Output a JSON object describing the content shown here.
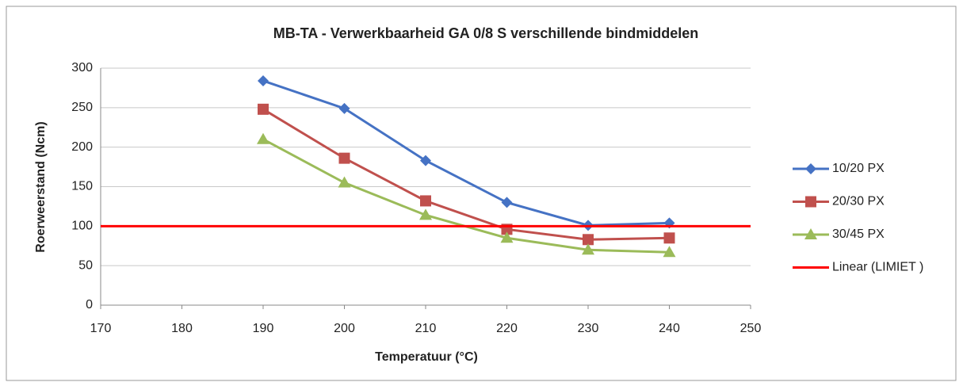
{
  "chart_data": {
    "type": "line",
    "title": "MB-TA - Verwerkbaarheid GA 0/8 S  verschillende bindmiddelen",
    "xlabel": "Temperatuur (°C)",
    "ylabel": "Roerweerstand (Ncm)",
    "xlim": [
      170,
      250
    ],
    "xticks": [
      170,
      180,
      190,
      200,
      210,
      220,
      230,
      240,
      250
    ],
    "ylim": [
      0,
      300
    ],
    "yticks": [
      0,
      50,
      100,
      150,
      200,
      250,
      300
    ],
    "grid": true,
    "legend": "right",
    "series": [
      {
        "name": "10/20 PX",
        "color": "#4572c4",
        "marker": "diamond",
        "x": [
          190,
          200,
          210,
          220,
          230,
          240
        ],
        "values": [
          284,
          249,
          183,
          130,
          101,
          104
        ]
      },
      {
        "name": "20/30 PX",
        "color": "#c0504d",
        "marker": "square",
        "x": [
          190,
          200,
          210,
          220,
          230,
          240
        ],
        "values": [
          248,
          186,
          132,
          96,
          83,
          85
        ]
      },
      {
        "name": "30/45 PX",
        "color": "#9bbb59",
        "marker": "triangle",
        "x": [
          190,
          200,
          210,
          220,
          230,
          240
        ],
        "values": [
          210,
          155,
          114,
          85,
          70,
          67
        ]
      },
      {
        "name": "Linear (LIMIET )",
        "color": "#ff0000",
        "marker": "none",
        "x": [
          170,
          250
        ],
        "values": [
          100,
          100
        ]
      }
    ]
  }
}
